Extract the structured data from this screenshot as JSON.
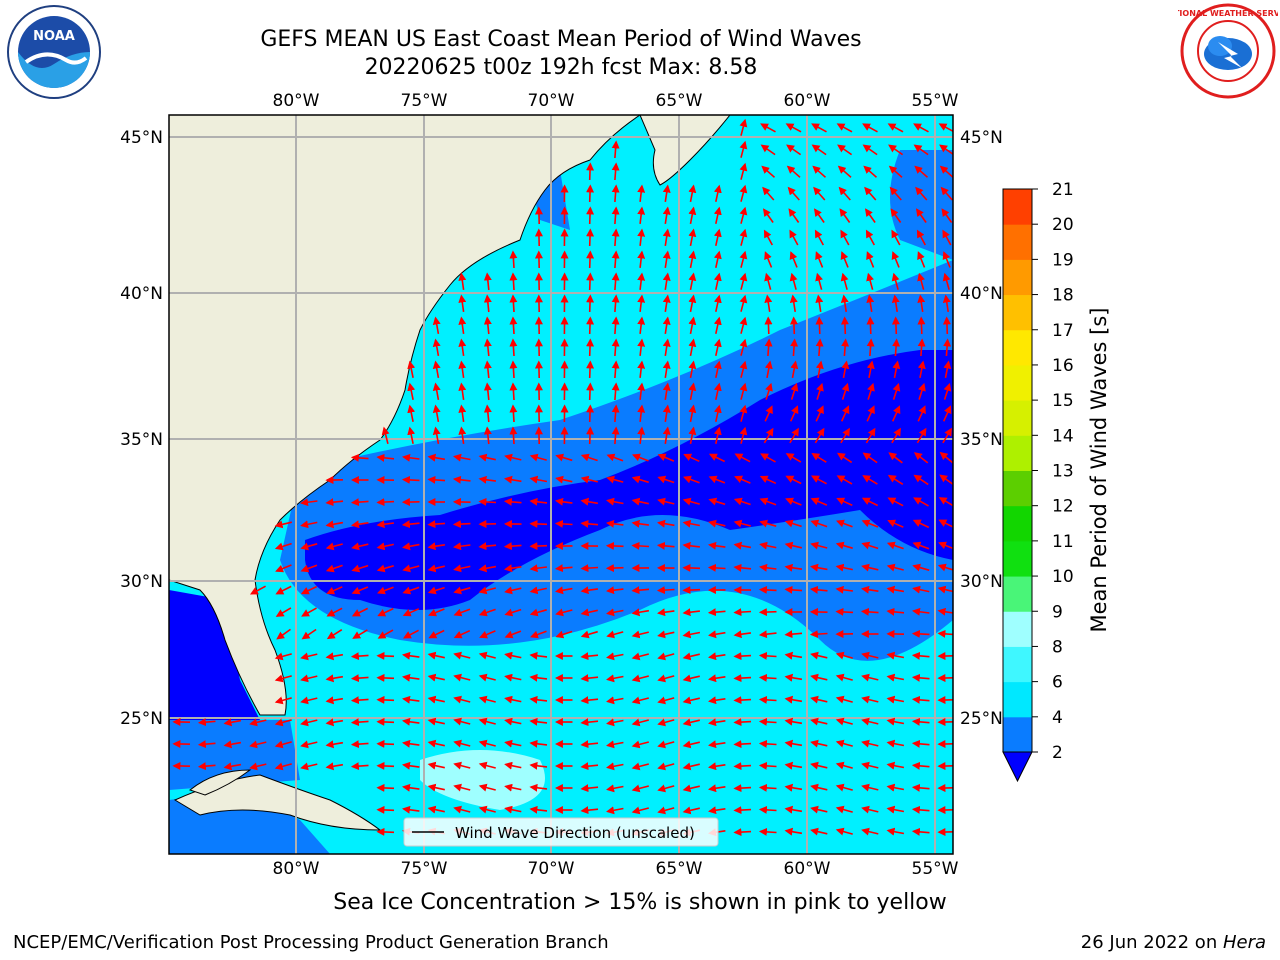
{
  "title": {
    "line1": "GEFS MEAN US East Coast Mean Period of Wind Waves",
    "line2": "20220625 t00z 192h fcst   Max: 8.58"
  },
  "map": {
    "lon_labels": [
      "80°W",
      "75°W",
      "70°W",
      "65°W",
      "60°W",
      "55°W"
    ],
    "lat_labels": [
      "45°N",
      "40°N",
      "35°N",
      "30°N",
      "25°N"
    ],
    "legend_label": "Wind Wave Direction (unscaled)",
    "arrow_color": "#ff0000",
    "land_color": "#eeeedc",
    "gridline_color": "#b0b0b0"
  },
  "colorbar": {
    "title": "Mean Period of Wind Waves [s]",
    "ticks": [
      "2",
      "4",
      "6",
      "8",
      "9",
      "10",
      "11",
      "12",
      "13",
      "14",
      "15",
      "16",
      "17",
      "18",
      "19",
      "20",
      "21"
    ],
    "colors": [
      "#0a7cff",
      "#00e8ff",
      "#3ff7ff",
      "#9fffff",
      "#49f578",
      "#10e010",
      "#12d600",
      "#5ccf00",
      "#aef000",
      "#d6f000",
      "#f0f000",
      "#ffe800",
      "#ffc000",
      "#ff9a00",
      "#ff7000",
      "#ff4000",
      "#ff1a00",
      "#ff0000"
    ],
    "extend_color": "#0000ff"
  },
  "ice_note": "Sea Ice Concentration > 15% is shown in pink to yellow",
  "footer": {
    "left": "NCEP/EMC/Verification Post Processing Product Generation Branch",
    "right_prefix": "26 Jun 2022 on ",
    "right_italic": "Hera"
  },
  "logos": {
    "noaa_text": "NOAA",
    "nws_text": "NATIONAL WEATHER SERVICE"
  }
}
